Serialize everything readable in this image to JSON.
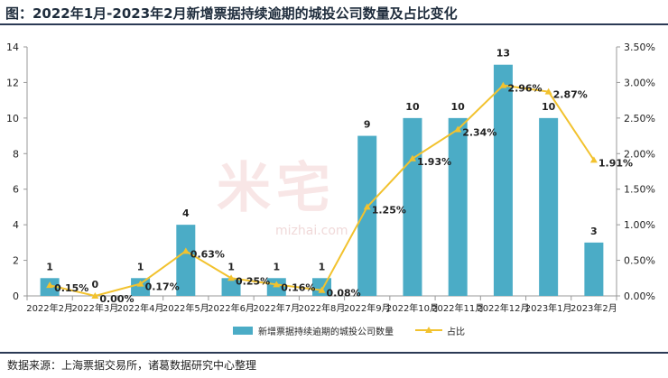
{
  "title": "图：2022年1月-2023年2月新增票据持续逾期的城投公司数量及占比变化",
  "source": "数据来源：上海票据交易所，诸葛数据研究中心整理",
  "watermark": {
    "text": "米宅",
    "url": "mizhai.com"
  },
  "colors": {
    "bar": "#4bacc6",
    "line": "#f2c22e",
    "axis_text": "#222222"
  },
  "chart_data": {
    "type": "bar",
    "categories": [
      "2022年2月",
      "2022年3月",
      "2022年4月",
      "2022年5月",
      "2022年6月",
      "2022年7月",
      "2022年8月",
      "2022年9月",
      "2022年10月",
      "2022年11月",
      "2022年12月",
      "2023年1月",
      "2023年2月"
    ],
    "series": [
      {
        "name": "新增票据持续逾期的城投公司数量",
        "type": "bar",
        "axis": "left",
        "values": [
          1,
          0,
          1,
          4,
          1,
          1,
          1,
          9,
          10,
          10,
          13,
          10,
          3
        ],
        "labels": [
          "1",
          "0",
          "1",
          "4",
          "1",
          "1",
          "1",
          "9",
          "10",
          "10",
          "13",
          "10",
          "3"
        ]
      },
      {
        "name": "占比",
        "type": "line",
        "axis": "right",
        "values": [
          0.15,
          0.0,
          0.17,
          0.63,
          0.25,
          0.16,
          0.08,
          1.25,
          1.93,
          2.34,
          2.96,
          2.87,
          1.91
        ],
        "labels": [
          "0.15%",
          "0.00%",
          "0.17%",
          "0.63%",
          "0.25%",
          "0.16%",
          "0.08%",
          "1.25%",
          "1.93%",
          "2.34%",
          "2.96%",
          "2.87%",
          "1.91%"
        ]
      }
    ],
    "y_left": {
      "min": 0,
      "max": 14,
      "ticks": [
        "0",
        "2",
        "4",
        "6",
        "8",
        "10",
        "12",
        "14"
      ]
    },
    "y_right": {
      "min": 0,
      "max": 3.5,
      "ticks": [
        "0.00%",
        "0.50%",
        "1.00%",
        "1.50%",
        "2.00%",
        "2.50%",
        "3.00%",
        "3.50%"
      ]
    },
    "legend": {
      "position": "bottom"
    },
    "grid": false
  }
}
